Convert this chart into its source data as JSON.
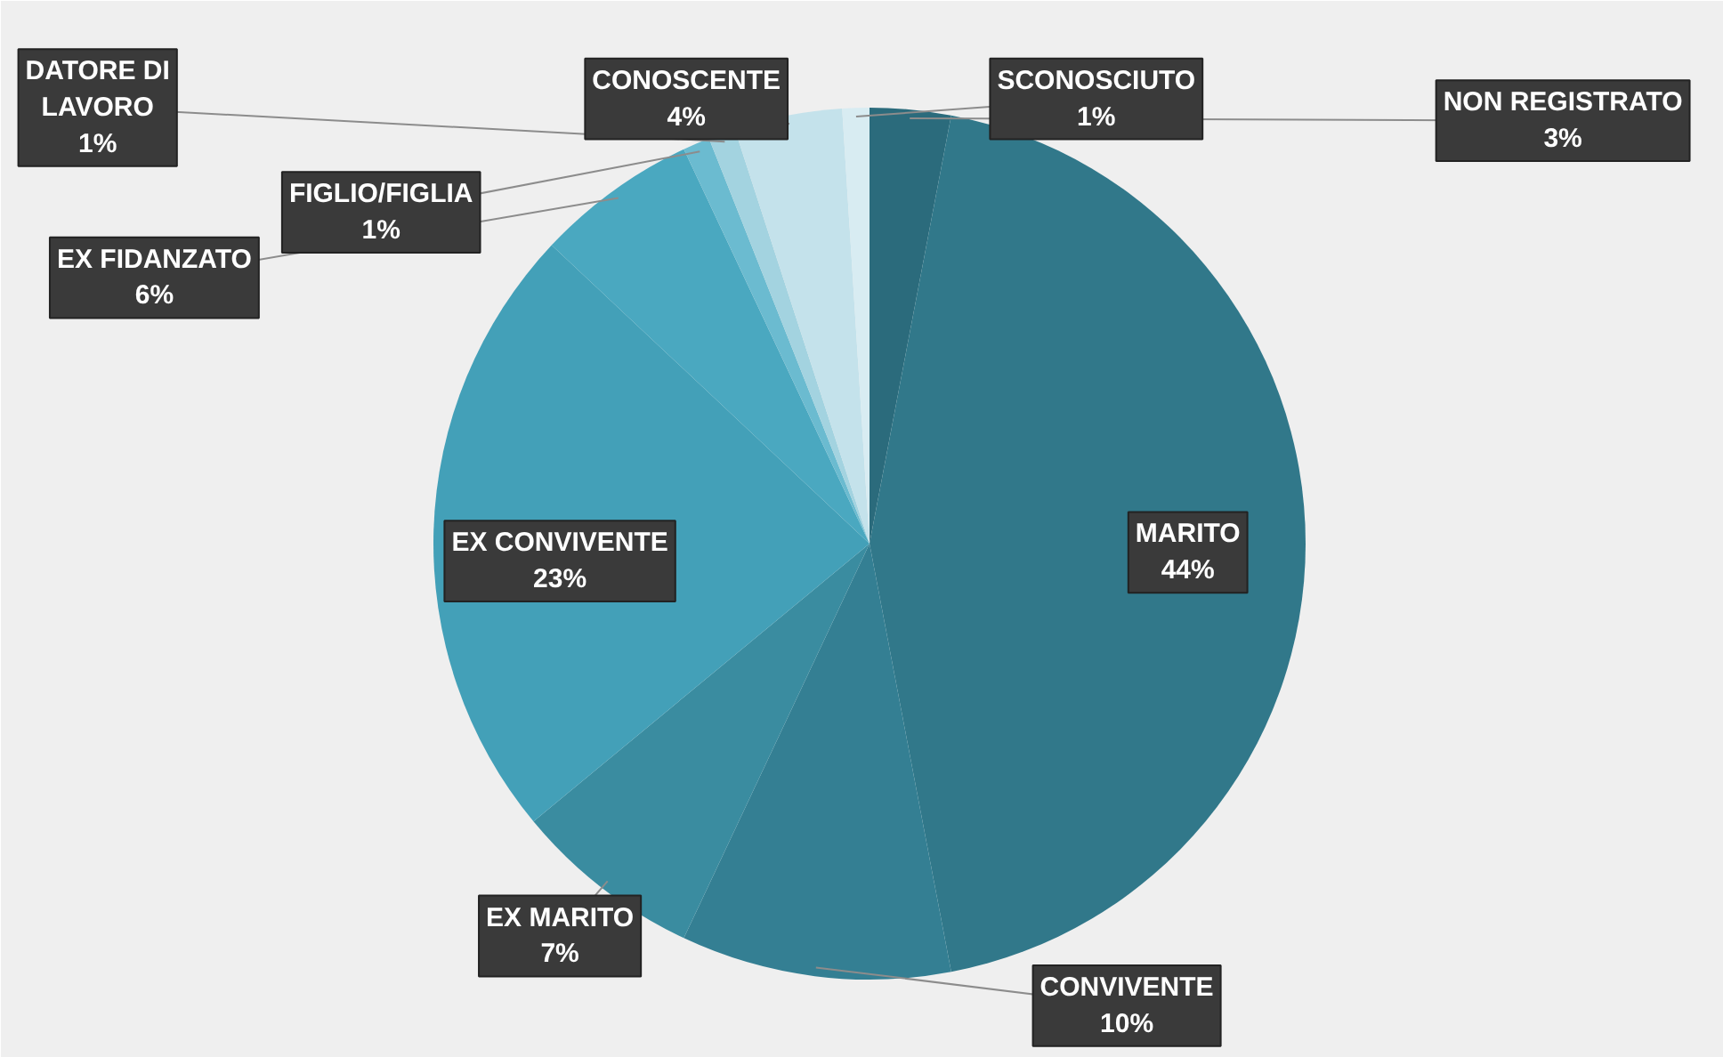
{
  "chart_data": {
    "type": "pie",
    "categories": [
      "NON REGISTRATO",
      "MARITO",
      "CONVIVENTE",
      "EX MARITO",
      "EX CONVIVENTE",
      "EX FIDANZATO",
      "FIGLIO/FIGLIA",
      "DATORE DI\nLAVORO",
      "CONOSCENTE",
      "SCONOSCIUTO"
    ],
    "values": [
      3,
      44,
      10,
      7,
      23,
      6,
      1,
      1,
      4,
      1
    ],
    "value_labels": [
      "3%",
      "44%",
      "10%",
      "7%",
      "23%",
      "6%",
      "1%",
      "1%",
      "4%",
      "1%"
    ],
    "colors": [
      "#2b6b7c",
      "#31788a",
      "#347f93",
      "#3a8ca0",
      "#43a0b8",
      "#4aa8c0",
      "#6bbbd0",
      "#a3d3e0",
      "#c4e2eb",
      "#d8ecf2"
    ]
  }
}
